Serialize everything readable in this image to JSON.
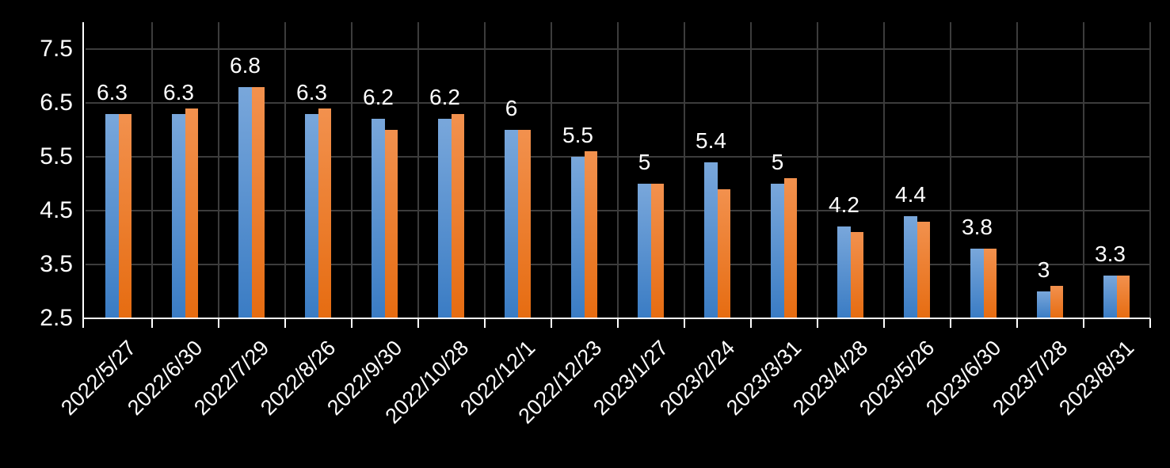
{
  "chart_data": {
    "type": "bar",
    "title": "",
    "categories": [
      "2022/5/27",
      "2022/6/30",
      "2022/7/29",
      "2022/8/26",
      "2022/9/30",
      "2022/10/28",
      "2022/12/1",
      "2022/12/23",
      "2023/1/27",
      "2023/2/24",
      "2023/3/31",
      "2023/4/28",
      "2023/5/26",
      "2023/6/30",
      "2023/7/28",
      "2023/8/31"
    ],
    "series": [
      {
        "name": "blue-series",
        "color": "#5B9BD5",
        "gradient_top": "#79A7DB",
        "gradient_bottom": "#3A7CC4",
        "values": [
          6.3,
          6.3,
          6.8,
          6.3,
          6.2,
          6.2,
          6.0,
          5.5,
          5.0,
          5.4,
          5.0,
          4.2,
          4.4,
          3.8,
          3.0,
          3.3
        ]
      },
      {
        "name": "orange-series",
        "color": "#ED7D31",
        "gradient_top": "#F2914E",
        "gradient_bottom": "#E66C11",
        "values": [
          6.3,
          6.4,
          6.8,
          6.4,
          6.0,
          6.3,
          6.0,
          5.6,
          5.0,
          4.9,
          5.1,
          4.1,
          4.3,
          3.8,
          3.1,
          3.3
        ]
      }
    ],
    "data_labels": [
      "6.3",
      "6.3",
      "6.8",
      "6.3",
      "6.2",
      "6.2",
      "6",
      "5.5",
      "5",
      "5.4",
      "5",
      "4.2",
      "4.4",
      "3.8",
      "3",
      "3.3"
    ],
    "data_labels_on_series": "blue-series",
    "ylim": [
      2.5,
      8.0
    ],
    "yticks": [
      2.5,
      3.5,
      4.5,
      5.5,
      6.5,
      7.5
    ],
    "ytick_labels": [
      "2.5",
      "3.5",
      "4.5",
      "5.5",
      "6.5",
      "7.5"
    ],
    "grid": true,
    "legend": "none",
    "colors": {
      "background": "#000000",
      "axis": "#FFFFFF",
      "gridline": "#3C3C3C",
      "text": "#FFFFFF"
    }
  }
}
